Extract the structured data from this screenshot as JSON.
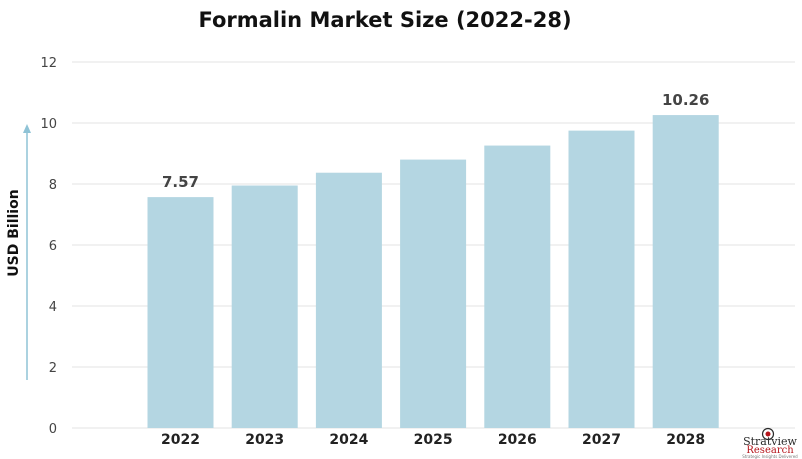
{
  "chart_data": {
    "type": "bar",
    "title": "Formalin Market Size (2022-28)",
    "xlabel": "",
    "ylabel": "USD Billion",
    "categories": [
      "2022",
      "2023",
      "2024",
      "2025",
      "2026",
      "2027",
      "2028"
    ],
    "values": [
      7.57,
      7.95,
      8.37,
      8.8,
      9.26,
      9.75,
      10.26
    ],
    "data_labels": [
      {
        "category": "2022",
        "text": "7.57"
      },
      {
        "category": "2028",
        "text": "10.26"
      }
    ],
    "ylim": [
      0,
      12
    ],
    "yticks": [
      0,
      2,
      4,
      6,
      8,
      10,
      12
    ],
    "grid": true,
    "bar_color": "#b4d6e2",
    "grid_color": "#e3e3e3",
    "axis_arrow_color": "#8fc3d6"
  },
  "logo": {
    "name": "Stratview",
    "sub": "Research",
    "tagline": "Strategic Insights Delivered",
    "accent_color": "#b5151b"
  }
}
